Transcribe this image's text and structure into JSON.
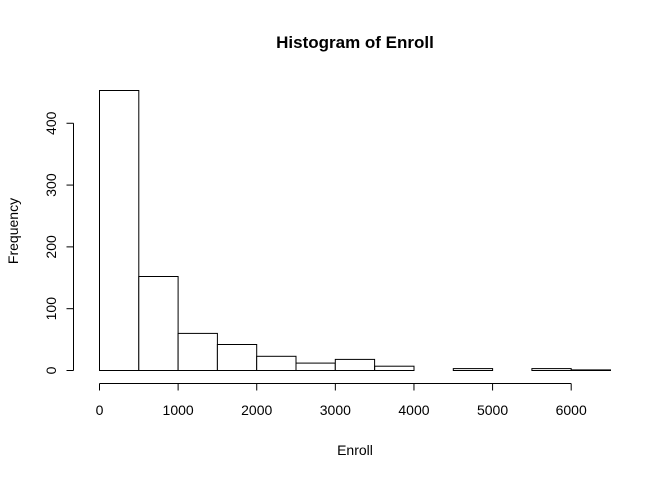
{
  "chart_data": {
    "type": "bar",
    "title": "Histogram of Enroll",
    "xlabel": "Enroll",
    "ylabel": "Frequency",
    "bin_width": 500,
    "bins": [
      {
        "start": 0,
        "end": 500,
        "count": 453
      },
      {
        "start": 500,
        "end": 1000,
        "count": 152
      },
      {
        "start": 1000,
        "end": 1500,
        "count": 60
      },
      {
        "start": 1500,
        "end": 2000,
        "count": 42
      },
      {
        "start": 2000,
        "end": 2500,
        "count": 23
      },
      {
        "start": 2500,
        "end": 3000,
        "count": 12
      },
      {
        "start": 3000,
        "end": 3500,
        "count": 18
      },
      {
        "start": 3500,
        "end": 4000,
        "count": 7
      },
      {
        "start": 4000,
        "end": 4500,
        "count": 0
      },
      {
        "start": 4500,
        "end": 5000,
        "count": 3
      },
      {
        "start": 5000,
        "end": 5500,
        "count": 0
      },
      {
        "start": 5500,
        "end": 6000,
        "count": 3
      },
      {
        "start": 6000,
        "end": 6500,
        "count": 1
      }
    ],
    "xlim": [
      0,
      6500
    ],
    "ylim": [
      0,
      453
    ],
    "x_ticks": [
      0,
      1000,
      2000,
      3000,
      4000,
      5000,
      6000
    ],
    "y_ticks": [
      0,
      100,
      200,
      300,
      400
    ],
    "grid": false,
    "legend": "none"
  }
}
